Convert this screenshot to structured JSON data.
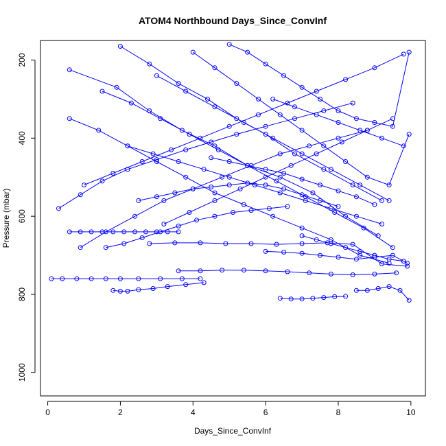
{
  "chart_data": {
    "type": "line",
    "title": "ATOM4 Northbound Days_Since_ConvInf",
    "xlabel": "Days_Since_ConvInf",
    "ylabel": "Pressure (mbar)",
    "xlim": [
      -0.2,
      10.4
    ],
    "ylim": [
      1060,
      150
    ],
    "y_reversed": true,
    "x_ticks": [
      0,
      2,
      4,
      6,
      8,
      10
    ],
    "y_ticks": [
      200,
      400,
      600,
      800,
      1000
    ],
    "x_tick_labels": [
      "0",
      "2",
      "4",
      "6",
      "8",
      "10"
    ],
    "y_tick_labels": [
      "200",
      "400",
      "600",
      "800",
      "1000"
    ],
    "grid": false,
    "marker": "open-circle",
    "color": "#0000ff",
    "series": [
      {
        "x": [
          0.6,
          1.9,
          2.8,
          3.7,
          4.6,
          5.5,
          6.4,
          7.3,
          8.2,
          9.1
        ],
        "y": [
          225,
          270,
          330,
          380,
          420,
          470,
          500,
          540,
          600,
          650
        ]
      },
      {
        "x": [
          0.3,
          0.9,
          1.5,
          2.2,
          3.0,
          3.8,
          4.5,
          5.2,
          6.0,
          6.8,
          7.6,
          8.4
        ],
        "y": [
          580,
          545,
          510,
          480,
          455,
          430,
          410,
          390,
          370,
          350,
          330,
          310
        ]
      },
      {
        "x": [
          0.1,
          0.4,
          0.8,
          1.2,
          1.6,
          2.0,
          2.5,
          3.1,
          3.7,
          4.2
        ],
        "y": [
          760,
          760,
          760,
          760,
          760,
          760,
          760,
          760,
          760,
          760
        ]
      },
      {
        "x": [
          0.6,
          0.9,
          1.2,
          1.5,
          1.8,
          2.1,
          2.4,
          2.7,
          3.0,
          3.3,
          3.6
        ],
        "y": [
          640,
          640,
          640,
          640,
          640,
          640,
          640,
          640,
          640,
          640,
          640
        ]
      },
      {
        "x": [
          1.8,
          2.0,
          2.2,
          2.5,
          2.9,
          3.3,
          3.8,
          4.3
        ],
        "y": [
          790,
          792,
          792,
          788,
          785,
          780,
          775,
          770
        ]
      },
      {
        "x": [
          6.4,
          6.7,
          7.0,
          7.3,
          7.6,
          7.9,
          8.2
        ],
        "y": [
          810,
          812,
          812,
          810,
          808,
          806,
          805
        ]
      },
      {
        "x": [
          8.5,
          8.8,
          9.1,
          9.4,
          9.7,
          9.95
        ],
        "y": [
          790,
          790,
          785,
          780,
          790,
          815
        ]
      },
      {
        "x": [
          2.8,
          3.5,
          4.2,
          4.9,
          5.6,
          6.3,
          7.0,
          7.7,
          8.4,
          9.2,
          9.9
        ],
        "y": [
          670,
          668,
          668,
          670,
          670,
          672,
          670,
          668,
          672,
          722,
          728
        ]
      },
      {
        "x": [
          3.6,
          4.2,
          4.8,
          5.4,
          6.0,
          6.6,
          7.2,
          7.8,
          8.4,
          9.0,
          9.6
        ],
        "y": [
          740,
          740,
          738,
          738,
          740,
          742,
          745,
          748,
          750,
          748,
          745
        ]
      },
      {
        "x": [
          6.0,
          6.5,
          7.0,
          7.5,
          8.0,
          8.5,
          9.0,
          9.5,
          9.9
        ],
        "y": [
          690,
          692,
          695,
          700,
          705,
          710,
          705,
          700,
          720
        ]
      },
      {
        "x": [
          1.0,
          1.8,
          2.6,
          3.4,
          4.2,
          5.0,
          5.8,
          6.6,
          7.4,
          8.2,
          9.0,
          9.8
        ],
        "y": [
          520,
          490,
          460,
          430,
          400,
          370,
          340,
          310,
          280,
          250,
          220,
          185
        ]
      },
      {
        "x": [
          1.5,
          2.3,
          3.1,
          3.9,
          4.7,
          5.5,
          6.3,
          7.1,
          7.9,
          8.7,
          9.5
        ],
        "y": [
          280,
          310,
          350,
          390,
          430,
          470,
          510,
          550,
          590,
          630,
          680
        ]
      },
      {
        "x": [
          2.0,
          2.8,
          3.6,
          4.4,
          5.2,
          6.0,
          6.8,
          7.6,
          8.4,
          9.2
        ],
        "y": [
          165,
          210,
          260,
          300,
          350,
          390,
          440,
          480,
          520,
          560
        ]
      },
      {
        "x": [
          0.6,
          1.4,
          2.2,
          3.0,
          3.8,
          4.6,
          5.4,
          6.2,
          7.0,
          7.8,
          8.6,
          9.4
        ],
        "y": [
          350,
          380,
          420,
          460,
          500,
          540,
          570,
          600,
          630,
          660,
          700,
          720
        ]
      },
      {
        "x": [
          3.2,
          3.9,
          4.6,
          5.3,
          6.0,
          6.7,
          7.4,
          8.1,
          8.8,
          9.5
        ],
        "y": [
          620,
          590,
          560,
          530,
          500,
          470,
          440,
          410,
          380,
          350
        ]
      },
      {
        "x": [
          4.0,
          4.6,
          5.2,
          5.8,
          6.4,
          7.0,
          7.6,
          8.2,
          8.8,
          9.4,
          9.95
        ],
        "y": [
          180,
          220,
          260,
          300,
          340,
          380,
          420,
          460,
          500,
          520,
          390
        ]
      },
      {
        "x": [
          2.5,
          3.0,
          3.5,
          4.0,
          4.5,
          5.0,
          5.5,
          6.0,
          6.5,
          7.0,
          7.5,
          8.0
        ],
        "y": [
          560,
          550,
          540,
          530,
          525,
          520,
          515,
          520,
          530,
          545,
          560,
          575
        ]
      },
      {
        "x": [
          5.0,
          5.5,
          6.0,
          6.5,
          7.0,
          7.5,
          8.0,
          8.5,
          9.0,
          9.5,
          9.95
        ],
        "y": [
          160,
          180,
          210,
          240,
          270,
          300,
          330,
          350,
          360,
          370,
          180
        ]
      },
      {
        "x": [
          1.6,
          2.1,
          2.6,
          3.1,
          3.6,
          4.1,
          4.6,
          5.1,
          5.6,
          6.1,
          6.6
        ],
        "y": [
          680,
          670,
          655,
          640,
          625,
          610,
          600,
          590,
          585,
          580,
          575
        ]
      },
      {
        "x": [
          4.5,
          5.0,
          5.5,
          6.0,
          6.5,
          7.0,
          7.5,
          8.0,
          8.5,
          9.0
        ],
        "y": [
          450,
          460,
          470,
          480,
          490,
          505,
          520,
          535,
          550,
          570
        ]
      },
      {
        "x": [
          0.9,
          1.6,
          2.4,
          3.2,
          4.0,
          4.8,
          5.6,
          6.4,
          7.2,
          8.0,
          8.8
        ],
        "y": [
          680,
          640,
          600,
          560,
          530,
          500,
          470,
          440,
          420,
          400,
          380
        ]
      },
      {
        "x": [
          6.2,
          6.8,
          7.4,
          8.0,
          8.6,
          9.2,
          9.8
        ],
        "y": [
          300,
          320,
          340,
          360,
          380,
          400,
          420
        ]
      },
      {
        "x": [
          3.0,
          3.8,
          4.6,
          5.4,
          6.2,
          7.0,
          7.8,
          8.6,
          9.4
        ],
        "y": [
          240,
          280,
          320,
          360,
          400,
          440,
          480,
          520,
          560
        ]
      },
      {
        "x": [
          2.2,
          2.9,
          3.6,
          4.3,
          5.0,
          5.7,
          6.4,
          7.1,
          7.8,
          8.5,
          9.2
        ],
        "y": [
          420,
          440,
          460,
          480,
          500,
          520,
          540,
          560,
          580,
          600,
          620
        ]
      },
      {
        "x": [
          7.0,
          7.4,
          7.8,
          8.2,
          8.6,
          9.0,
          9.4,
          9.8
        ],
        "y": [
          650,
          660,
          670,
          680,
          690,
          700,
          710,
          715
        ]
      }
    ]
  }
}
